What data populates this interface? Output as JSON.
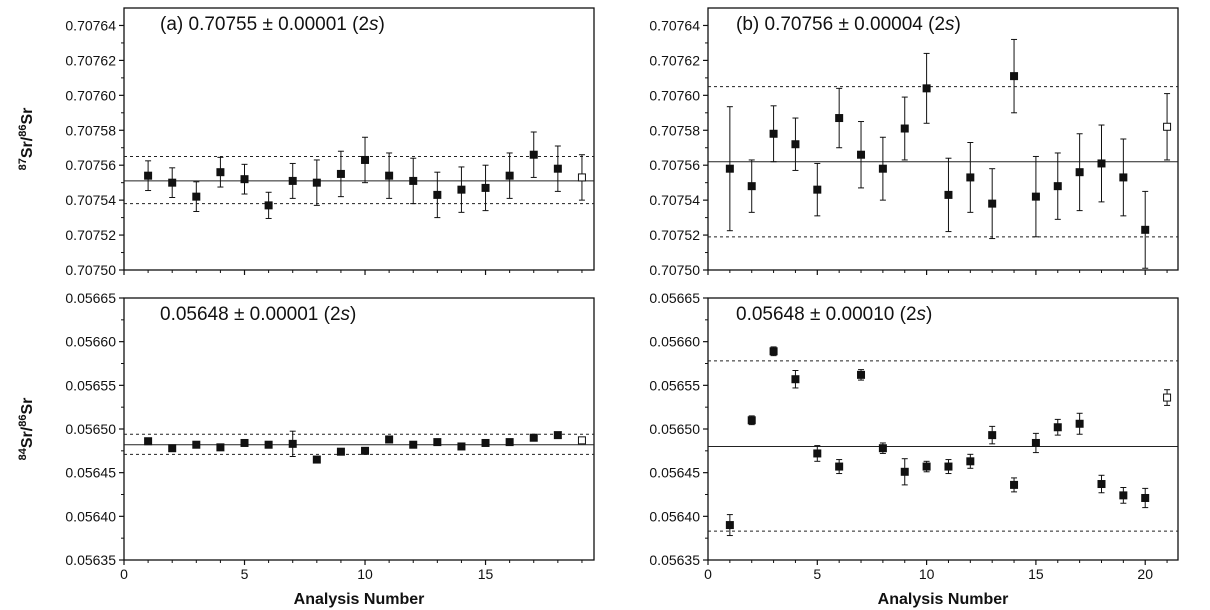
{
  "chart_data": [
    {
      "type": "scatter",
      "panel": "top-left",
      "annotation": {
        "prefix": "(a)  0.70755 ± 0.00001 (2",
        "italic": "s",
        "suffix": ")"
      },
      "ylabel": {
        "sup1": "87",
        "mid": "Sr/",
        "sup2": "86",
        "end": "Sr"
      },
      "xlabel": "",
      "xlim": [
        0,
        19.5
      ],
      "ylim": [
        0.7075,
        0.70765
      ],
      "xticks": [
        0,
        5,
        10,
        15
      ],
      "xtick_labels": [
        "",
        "",
        "",
        ""
      ],
      "yticks": [
        0.7075,
        0.70752,
        0.70754,
        0.70756,
        0.70758,
        0.7076,
        0.70762,
        0.70764
      ],
      "ytick_labels": [
        "0.70750",
        "0.70752",
        "0.70754",
        "0.70756",
        "0.70758",
        "0.70760",
        "0.70762",
        "0.70764"
      ],
      "mean": 0.707551,
      "limits": [
        0.707538,
        0.707565
      ],
      "points": [
        {
          "x": 1,
          "y": 0.707554,
          "err": 8.5e-06,
          "open": false
        },
        {
          "x": 2,
          "y": 0.70755,
          "err": 8.5e-06,
          "open": false
        },
        {
          "x": 3,
          "y": 0.707542,
          "err": 8.5e-06,
          "open": false
        },
        {
          "x": 4,
          "y": 0.707556,
          "err": 8.5e-06,
          "open": false
        },
        {
          "x": 5,
          "y": 0.707552,
          "err": 8.5e-06,
          "open": false
        },
        {
          "x": 6,
          "y": 0.707537,
          "err": 7.5e-06,
          "open": false
        },
        {
          "x": 7,
          "y": 0.707551,
          "err": 1e-05,
          "open": false
        },
        {
          "x": 8,
          "y": 0.70755,
          "err": 1.3e-05,
          "open": false
        },
        {
          "x": 9,
          "y": 0.707555,
          "err": 1.3e-05,
          "open": false
        },
        {
          "x": 10,
          "y": 0.707563,
          "err": 1.3e-05,
          "open": false
        },
        {
          "x": 11,
          "y": 0.707554,
          "err": 1.3e-05,
          "open": false
        },
        {
          "x": 12,
          "y": 0.707551,
          "err": 1.3e-05,
          "open": false
        },
        {
          "x": 13,
          "y": 0.707543,
          "err": 1.3e-05,
          "open": false
        },
        {
          "x": 14,
          "y": 0.707546,
          "err": 1.3e-05,
          "open": false
        },
        {
          "x": 15,
          "y": 0.707547,
          "err": 1.3e-05,
          "open": false
        },
        {
          "x": 16,
          "y": 0.707554,
          "err": 1.3e-05,
          "open": false
        },
        {
          "x": 17,
          "y": 0.707566,
          "err": 1.3e-05,
          "open": false
        },
        {
          "x": 18,
          "y": 0.707558,
          "err": 1.3e-05,
          "open": false
        },
        {
          "x": 19,
          "y": 0.707553,
          "err": 1.3e-05,
          "open": true
        }
      ]
    },
    {
      "type": "scatter",
      "panel": "top-right",
      "annotation": {
        "prefix": "(b)  0.70756 ± 0.00004 (2",
        "italic": "s",
        "suffix": ")"
      },
      "ylabel": {
        "sup1": "",
        "mid": "",
        "sup2": "",
        "end": ""
      },
      "xlabel": "",
      "xlim": [
        0,
        21.5
      ],
      "ylim": [
        0.7075,
        0.70765
      ],
      "xticks": [
        0,
        5,
        10,
        15,
        20
      ],
      "xtick_labels": [
        "",
        "",
        "",
        "",
        ""
      ],
      "yticks": [
        0.7075,
        0.70752,
        0.70754,
        0.70756,
        0.70758,
        0.7076,
        0.70762,
        0.70764
      ],
      "ytick_labels": [
        "0.70750",
        "0.70752",
        "0.70754",
        "0.70756",
        "0.70758",
        "0.70760",
        "0.70762",
        "0.70764"
      ],
      "mean": 0.707562,
      "limits": [
        0.707519,
        0.707605
      ],
      "points": [
        {
          "x": 1,
          "y": 0.707558,
          "err": 3.55e-05,
          "open": false
        },
        {
          "x": 2,
          "y": 0.707548,
          "err": 1.5e-05,
          "open": false
        },
        {
          "x": 3,
          "y": 0.707578,
          "err": 1.6e-05,
          "open": false
        },
        {
          "x": 4,
          "y": 0.707572,
          "err": 1.5e-05,
          "open": false
        },
        {
          "x": 5,
          "y": 0.707546,
          "err": 1.5e-05,
          "open": false
        },
        {
          "x": 6,
          "y": 0.707587,
          "err": 1.7e-05,
          "open": false
        },
        {
          "x": 7,
          "y": 0.707566,
          "err": 1.9e-05,
          "open": false
        },
        {
          "x": 8,
          "y": 0.707558,
          "err": 1.8e-05,
          "open": false
        },
        {
          "x": 9,
          "y": 0.707581,
          "err": 1.8e-05,
          "open": false
        },
        {
          "x": 10,
          "y": 0.707604,
          "err": 2e-05,
          "open": false
        },
        {
          "x": 11,
          "y": 0.707543,
          "err": 2.1e-05,
          "open": false
        },
        {
          "x": 12,
          "y": 0.707553,
          "err": 2e-05,
          "open": false
        },
        {
          "x": 13,
          "y": 0.707538,
          "err": 2e-05,
          "open": false
        },
        {
          "x": 14,
          "y": 0.707611,
          "err": 2.1e-05,
          "open": false
        },
        {
          "x": 15,
          "y": 0.707542,
          "err": 2.3e-05,
          "open": false
        },
        {
          "x": 16,
          "y": 0.707548,
          "err": 1.9e-05,
          "open": false
        },
        {
          "x": 17,
          "y": 0.707556,
          "err": 2.2e-05,
          "open": false
        },
        {
          "x": 18,
          "y": 0.707561,
          "err": 2.2e-05,
          "open": false
        },
        {
          "x": 19,
          "y": 0.707553,
          "err": 2.2e-05,
          "open": false
        },
        {
          "x": 20,
          "y": 0.707523,
          "err": 2.2e-05,
          "open": false
        },
        {
          "x": 21,
          "y": 0.707582,
          "err": 1.9e-05,
          "open": true
        }
      ]
    },
    {
      "type": "scatter",
      "panel": "bottom-left",
      "annotation": {
        "prefix": "0.05648 ± 0.00001 (2",
        "italic": "s",
        "suffix": ")"
      },
      "ylabel": {
        "sup1": "84",
        "mid": "Sr/",
        "sup2": "86",
        "end": "Sr"
      },
      "xlabel": "Analysis Number",
      "xlim": [
        0,
        19.5
      ],
      "ylim": [
        0.05635,
        0.05665
      ],
      "xticks": [
        0,
        5,
        10,
        15
      ],
      "xtick_labels": [
        "0",
        "5",
        "10",
        "15"
      ],
      "yticks": [
        0.05635,
        0.0564,
        0.05645,
        0.0565,
        0.05655,
        0.0566,
        0.05665
      ],
      "ytick_labels": [
        "0.05635",
        "0.05640",
        "0.05645",
        "0.05650",
        "0.05655",
        "0.05660",
        "0.05665"
      ],
      "mean": 0.056482,
      "limits": [
        0.056471,
        0.056494
      ],
      "points": [
        {
          "x": 1,
          "y": 0.056486,
          "err": 1e-06,
          "open": false
        },
        {
          "x": 2,
          "y": 0.056478,
          "err": 1e-06,
          "open": false
        },
        {
          "x": 3,
          "y": 0.056482,
          "err": 1e-06,
          "open": false
        },
        {
          "x": 4,
          "y": 0.056479,
          "err": 1e-06,
          "open": false
        },
        {
          "x": 5,
          "y": 0.056484,
          "err": 1e-06,
          "open": false
        },
        {
          "x": 6,
          "y": 0.056482,
          "err": 1e-06,
          "open": false
        },
        {
          "x": 7,
          "y": 0.056483,
          "err": 1.45e-05,
          "open": false
        },
        {
          "x": 8,
          "y": 0.056465,
          "err": 1e-06,
          "open": false
        },
        {
          "x": 9,
          "y": 0.056474,
          "err": 1e-06,
          "open": false
        },
        {
          "x": 10,
          "y": 0.056475,
          "err": 1e-06,
          "open": false
        },
        {
          "x": 11,
          "y": 0.056488,
          "err": 1e-06,
          "open": false
        },
        {
          "x": 12,
          "y": 0.056482,
          "err": 1e-06,
          "open": false
        },
        {
          "x": 13,
          "y": 0.056485,
          "err": 1e-06,
          "open": false
        },
        {
          "x": 14,
          "y": 0.05648,
          "err": 1e-06,
          "open": false
        },
        {
          "x": 15,
          "y": 0.056484,
          "err": 1e-06,
          "open": false
        },
        {
          "x": 16,
          "y": 0.056485,
          "err": 1e-06,
          "open": false
        },
        {
          "x": 17,
          "y": 0.05649,
          "err": 1e-06,
          "open": false
        },
        {
          "x": 18,
          "y": 0.056493,
          "err": 1e-06,
          "open": false
        },
        {
          "x": 19,
          "y": 0.056487,
          "err": 1e-06,
          "open": true
        }
      ]
    },
    {
      "type": "scatter",
      "panel": "bottom-right",
      "annotation": {
        "prefix": "0.05648 ± 0.00010 (2",
        "italic": "s",
        "suffix": ")"
      },
      "ylabel": {
        "sup1": "",
        "mid": "",
        "sup2": "",
        "end": ""
      },
      "xlabel": "Analysis Number",
      "xlim": [
        0,
        21.5
      ],
      "ylim": [
        0.05635,
        0.05665
      ],
      "xticks": [
        0,
        5,
        10,
        15,
        20
      ],
      "xtick_labels": [
        "0",
        "5",
        "10",
        "15",
        "20"
      ],
      "yticks": [
        0.05635,
        0.0564,
        0.05645,
        0.0565,
        0.05655,
        0.0566,
        0.05665
      ],
      "ytick_labels": [
        "0.05635",
        "0.05640",
        "0.05645",
        "0.05650",
        "0.05655",
        "0.05660",
        "0.05665"
      ],
      "mean": 0.05648,
      "limits": [
        0.056383,
        0.056578
      ],
      "points": [
        {
          "x": 1,
          "y": 0.05639,
          "err": 1.2e-05,
          "open": false
        },
        {
          "x": 2,
          "y": 0.05651,
          "err": 5e-06,
          "open": false
        },
        {
          "x": 3,
          "y": 0.056589,
          "err": 5e-06,
          "open": false
        },
        {
          "x": 4,
          "y": 0.056557,
          "err": 1e-05,
          "open": false
        },
        {
          "x": 5,
          "y": 0.056472,
          "err": 9e-06,
          "open": false
        },
        {
          "x": 6,
          "y": 0.056457,
          "err": 8e-06,
          "open": false
        },
        {
          "x": 7,
          "y": 0.056562,
          "err": 6e-06,
          "open": false
        },
        {
          "x": 8,
          "y": 0.056478,
          "err": 6e-06,
          "open": false
        },
        {
          "x": 9,
          "y": 0.056451,
          "err": 1.5e-05,
          "open": false
        },
        {
          "x": 10,
          "y": 0.056457,
          "err": 6e-06,
          "open": false
        },
        {
          "x": 11,
          "y": 0.056457,
          "err": 8e-06,
          "open": false
        },
        {
          "x": 12,
          "y": 0.056463,
          "err": 8e-06,
          "open": false
        },
        {
          "x": 13,
          "y": 0.056493,
          "err": 1e-05,
          "open": false
        },
        {
          "x": 14,
          "y": 0.056436,
          "err": 8e-06,
          "open": false
        },
        {
          "x": 15,
          "y": 0.056484,
          "err": 1.1e-05,
          "open": false
        },
        {
          "x": 16,
          "y": 0.056502,
          "err": 9e-06,
          "open": false
        },
        {
          "x": 17,
          "y": 0.056506,
          "err": 1.2e-05,
          "open": false
        },
        {
          "x": 18,
          "y": 0.056437,
          "err": 1e-05,
          "open": false
        },
        {
          "x": 19,
          "y": 0.056424,
          "err": 9e-06,
          "open": false
        },
        {
          "x": 20,
          "y": 0.056421,
          "err": 1.1e-05,
          "open": false
        },
        {
          "x": 21,
          "y": 0.056536,
          "err": 9e-06,
          "open": true
        }
      ]
    }
  ]
}
